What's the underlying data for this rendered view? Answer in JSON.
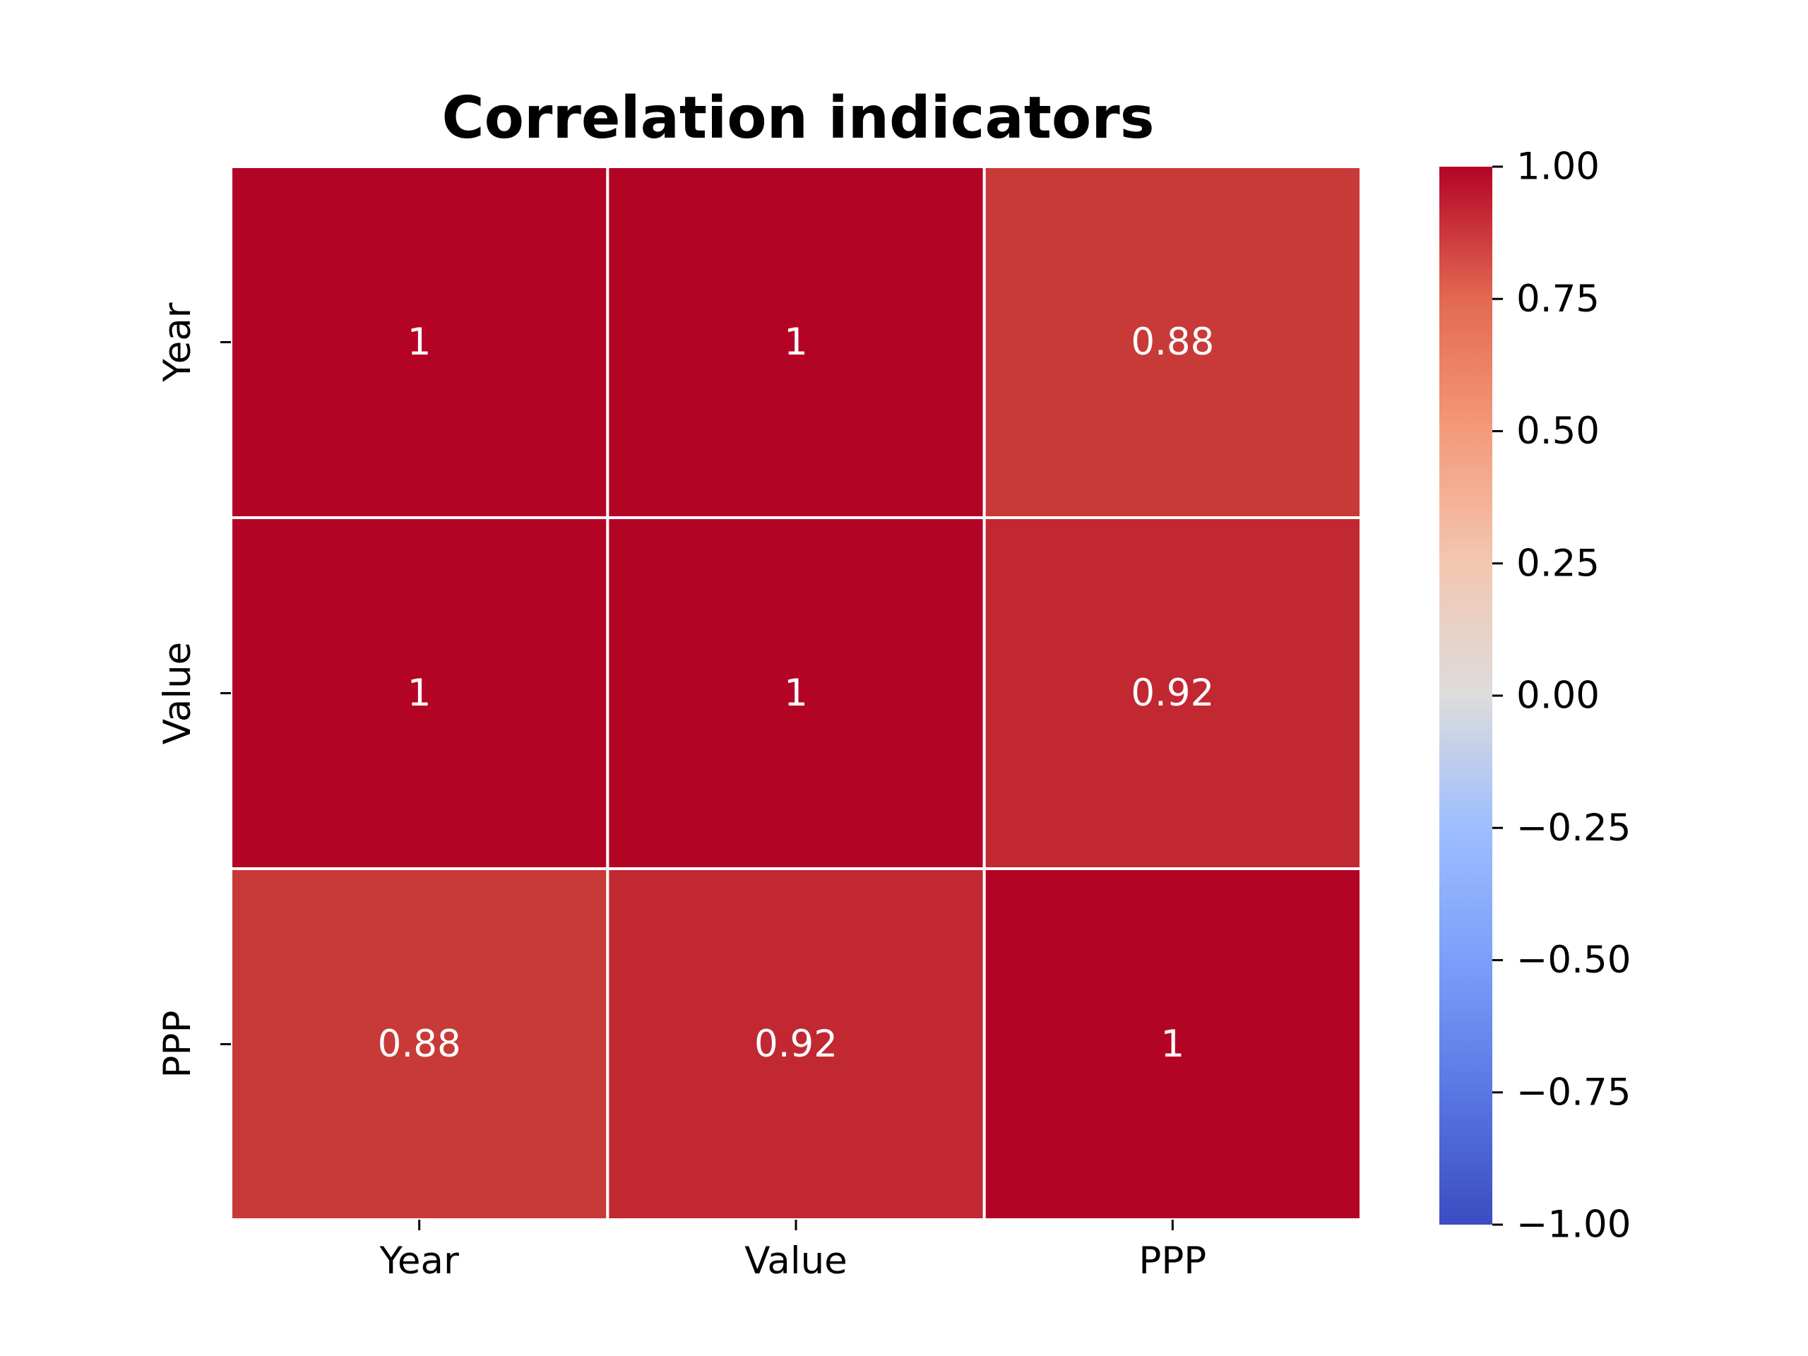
{
  "chart_data": {
    "type": "heatmap",
    "title": "Correlation indicators",
    "xlabel": "",
    "ylabel": "",
    "x_categories": [
      "Year",
      "Value",
      "PPP"
    ],
    "y_categories": [
      "Year",
      "Value",
      "PPP"
    ],
    "matrix": [
      [
        1.0,
        1.0,
        0.88
      ],
      [
        1.0,
        1.0,
        0.92
      ],
      [
        0.88,
        0.92,
        1.0
      ]
    ],
    "cell_labels": [
      [
        "1",
        "1",
        "0.88"
      ],
      [
        "1",
        "1",
        "0.92"
      ],
      [
        "0.88",
        "0.92",
        "1"
      ]
    ],
    "colormap": "coolwarm",
    "colorbar": {
      "vmin": -1.0,
      "vmax": 1.0,
      "ticks": [
        1.0,
        0.75,
        0.5,
        0.25,
        0.0,
        -0.25,
        -0.5,
        -0.75,
        -1.0
      ],
      "tick_labels": [
        "1.00",
        "0.75",
        "0.50",
        "0.25",
        "0.00",
        "−0.25",
        "−0.50",
        "−0.75",
        "−1.00"
      ],
      "colors": {
        "low": "#3b4cc0",
        "mid": "#dddddd",
        "high": "#b40426"
      }
    },
    "cell_border_color": "#ffffff",
    "grid": false,
    "legend": "colorbar-right"
  }
}
